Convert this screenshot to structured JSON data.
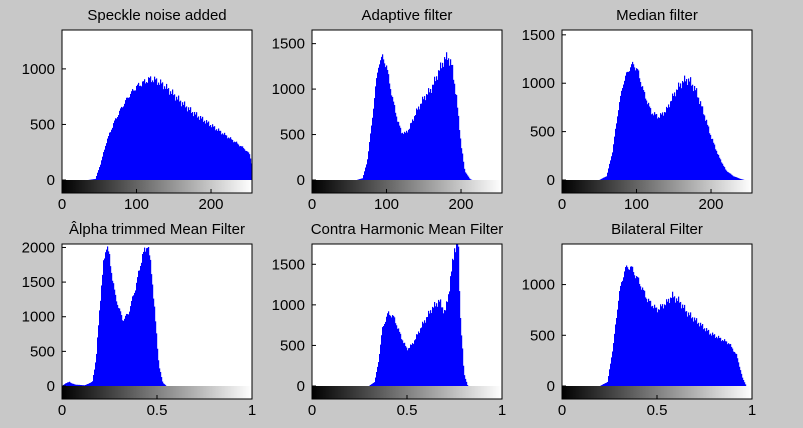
{
  "colors": {
    "background": "#c8c8c8",
    "bar": "#0000ff",
    "axes_bg": "#ffffff"
  },
  "chart_data": [
    {
      "type": "bar",
      "title": "Speckle noise added",
      "xlim": [
        0,
        255
      ],
      "ylim": [
        0,
        1350
      ],
      "xticks": [
        0,
        100,
        200
      ],
      "xtick_labels": [
        "0",
        "100",
        "200"
      ],
      "yticks": [
        0,
        500,
        1000
      ],
      "ytick_labels": [
        "0",
        "500",
        "1000"
      ],
      "colorbar": "grayscale",
      "series": [
        {
          "points": [
            [
              0,
              0
            ],
            [
              35,
              0
            ],
            [
              45,
              10
            ],
            [
              52,
              150
            ],
            [
              60,
              350
            ],
            [
              70,
              520
            ],
            [
              80,
              650
            ],
            [
              90,
              760
            ],
            [
              100,
              840
            ],
            [
              110,
              880
            ],
            [
              118,
              910
            ],
            [
              125,
              900
            ],
            [
              135,
              860
            ],
            [
              145,
              800
            ],
            [
              160,
              700
            ],
            [
              175,
              610
            ],
            [
              190,
              540
            ],
            [
              205,
              470
            ],
            [
              220,
              400
            ],
            [
              235,
              330
            ],
            [
              245,
              280
            ],
            [
              252,
              230
            ],
            [
              255,
              130
            ]
          ]
        }
      ]
    },
    {
      "type": "bar",
      "title": "Adaptive filter",
      "xlim": [
        0,
        255
      ],
      "ylim": [
        0,
        1650
      ],
      "xticks": [
        0,
        100,
        200
      ],
      "xtick_labels": [
        "0",
        "100",
        "200"
      ],
      "yticks": [
        0,
        500,
        1000,
        1500
      ],
      "ytick_labels": [
        "0",
        "500",
        "1000",
        "1500"
      ],
      "colorbar": "grayscale",
      "series": [
        {
          "points": [
            [
              0,
              0
            ],
            [
              60,
              0
            ],
            [
              68,
              20
            ],
            [
              74,
              200
            ],
            [
              80,
              600
            ],
            [
              85,
              1000
            ],
            [
              90,
              1300
            ],
            [
              95,
              1350
            ],
            [
              100,
              1250
            ],
            [
              108,
              900
            ],
            [
              115,
              650
            ],
            [
              120,
              530
            ],
            [
              125,
              510
            ],
            [
              130,
              560
            ],
            [
              140,
              750
            ],
            [
              150,
              900
            ],
            [
              160,
              1000
            ],
            [
              168,
              1150
            ],
            [
              176,
              1300
            ],
            [
              182,
              1360
            ],
            [
              188,
              1250
            ],
            [
              194,
              900
            ],
            [
              200,
              400
            ],
            [
              205,
              100
            ],
            [
              212,
              10
            ],
            [
              215,
              0
            ],
            [
              255,
              0
            ]
          ]
        }
      ]
    },
    {
      "type": "bar",
      "title": "Median filter",
      "xlim": [
        0,
        255
      ],
      "ylim": [
        0,
        1550
      ],
      "xticks": [
        0,
        100,
        200
      ],
      "xtick_labels": [
        "0",
        "100",
        "200"
      ],
      "yticks": [
        0,
        500,
        1000,
        1500
      ],
      "ytick_labels": [
        "0",
        "500",
        "1000",
        "1500"
      ],
      "colorbar": "grayscale",
      "series": [
        {
          "points": [
            [
              0,
              0
            ],
            [
              50,
              0
            ],
            [
              60,
              40
            ],
            [
              68,
              300
            ],
            [
              75,
              700
            ],
            [
              82,
              1000
            ],
            [
              90,
              1150
            ],
            [
              96,
              1200
            ],
            [
              102,
              1120
            ],
            [
              110,
              900
            ],
            [
              120,
              700
            ],
            [
              130,
              650
            ],
            [
              140,
              720
            ],
            [
              150,
              880
            ],
            [
              158,
              980
            ],
            [
              166,
              1040
            ],
            [
              172,
              1020
            ],
            [
              180,
              920
            ],
            [
              190,
              700
            ],
            [
              200,
              450
            ],
            [
              210,
              250
            ],
            [
              220,
              100
            ],
            [
              230,
              40
            ],
            [
              240,
              10
            ],
            [
              245,
              0
            ],
            [
              255,
              0
            ]
          ]
        }
      ]
    },
    {
      "type": "bar",
      "title": "Âlpha trimmed Mean Filter",
      "xlim": [
        0,
        1
      ],
      "ylim": [
        0,
        2050
      ],
      "xticks": [
        0,
        0.5,
        1
      ],
      "xtick_labels": [
        "0",
        "0.5",
        "1"
      ],
      "yticks": [
        0,
        500,
        1000,
        1500,
        2000
      ],
      "ytick_labels": [
        "0",
        "500",
        "1000",
        "1500",
        "2000"
      ],
      "colorbar": "grayscale",
      "series": [
        {
          "points": [
            [
              0,
              0
            ],
            [
              0.02,
              40
            ],
            [
              0.04,
              60
            ],
            [
              0.05,
              40
            ],
            [
              0.07,
              20
            ],
            [
              0.12,
              10
            ],
            [
              0.16,
              60
            ],
            [
              0.18,
              400
            ],
            [
              0.2,
              1200
            ],
            [
              0.22,
              1800
            ],
            [
              0.235,
              2050
            ],
            [
              0.25,
              1850
            ],
            [
              0.28,
              1300
            ],
            [
              0.32,
              950
            ],
            [
              0.35,
              1050
            ],
            [
              0.39,
              1450
            ],
            [
              0.42,
              1850
            ],
            [
              0.45,
              2050
            ],
            [
              0.47,
              1700
            ],
            [
              0.49,
              1000
            ],
            [
              0.51,
              300
            ],
            [
              0.53,
              50
            ],
            [
              0.55,
              0
            ],
            [
              1,
              0
            ]
          ]
        }
      ]
    },
    {
      "type": "bar",
      "title": "Contra Harmonic Mean Filter",
      "xlim": [
        0,
        1
      ],
      "ylim": [
        0,
        1750
      ],
      "xticks": [
        0,
        0.5,
        1
      ],
      "xtick_labels": [
        "0",
        "0.5",
        "1"
      ],
      "yticks": [
        0,
        500,
        1000,
        1500
      ],
      "ytick_labels": [
        "0",
        "500",
        "1000",
        "1500"
      ],
      "colorbar": "grayscale",
      "series": [
        {
          "points": [
            [
              0,
              0
            ],
            [
              0.3,
              0
            ],
            [
              0.33,
              50
            ],
            [
              0.35,
              300
            ],
            [
              0.37,
              700
            ],
            [
              0.4,
              900
            ],
            [
              0.43,
              850
            ],
            [
              0.47,
              600
            ],
            [
              0.5,
              450
            ],
            [
              0.53,
              520
            ],
            [
              0.58,
              750
            ],
            [
              0.63,
              950
            ],
            [
              0.67,
              1050
            ],
            [
              0.7,
              900
            ],
            [
              0.72,
              1150
            ],
            [
              0.75,
              1700
            ],
            [
              0.77,
              1750
            ],
            [
              0.78,
              900
            ],
            [
              0.8,
              150
            ],
            [
              0.82,
              0
            ],
            [
              1,
              0
            ]
          ]
        }
      ]
    },
    {
      "type": "bar",
      "title": "Bilateral Filter",
      "xlim": [
        0,
        1
      ],
      "ylim": [
        0,
        1400
      ],
      "xticks": [
        0,
        0.5,
        1
      ],
      "xtick_labels": [
        "0",
        "0.5",
        "1"
      ],
      "yticks": [
        0,
        500,
        1000
      ],
      "ytick_labels": [
        "0",
        "500",
        "1000"
      ],
      "colorbar": "grayscale",
      "series": [
        {
          "points": [
            [
              0,
              0
            ],
            [
              0.2,
              0
            ],
            [
              0.24,
              40
            ],
            [
              0.27,
              400
            ],
            [
              0.3,
              900
            ],
            [
              0.33,
              1150
            ],
            [
              0.36,
              1180
            ],
            [
              0.4,
              1050
            ],
            [
              0.45,
              850
            ],
            [
              0.5,
              750
            ],
            [
              0.55,
              820
            ],
            [
              0.58,
              890
            ],
            [
              0.62,
              830
            ],
            [
              0.66,
              720
            ],
            [
              0.72,
              620
            ],
            [
              0.78,
              520
            ],
            [
              0.84,
              460
            ],
            [
              0.88,
              420
            ],
            [
              0.92,
              300
            ],
            [
              0.95,
              80
            ],
            [
              0.97,
              0
            ],
            [
              1,
              0
            ]
          ]
        }
      ]
    }
  ]
}
